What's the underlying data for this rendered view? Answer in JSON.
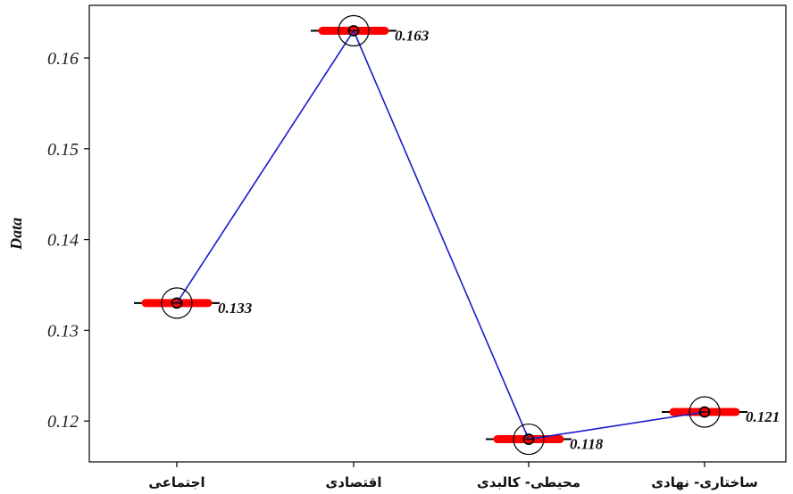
{
  "chart_data": {
    "type": "line",
    "categories": [
      "اجتماعی",
      "اقتصادی",
      "محیطی- کالبدی",
      "ساختاری- نهادی"
    ],
    "values": [
      0.133,
      0.163,
      0.118,
      0.121
    ],
    "data_labels": [
      "0.133",
      "0.163",
      "0.118",
      "0.121"
    ],
    "ylabel": "Data",
    "xlabel": "",
    "ylim": [
      0.1155,
      0.1658
    ],
    "yticks": [
      0.12,
      0.13,
      0.14,
      0.15,
      0.16
    ],
    "ytick_labels": [
      "0.12",
      "0.13",
      "0.14",
      "0.15",
      "0.16"
    ],
    "grid": false,
    "colors": {
      "line": "#1a1acc",
      "bar": "#ff0000",
      "marker": "#000000"
    }
  }
}
